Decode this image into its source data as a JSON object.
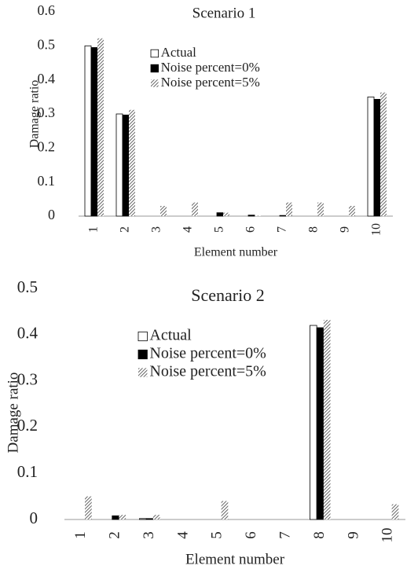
{
  "chart_data": [
    {
      "type": "bar",
      "title": "Scenario 1",
      "y_label": "Damage ratio",
      "x_label": "Element number",
      "categories": [
        "1",
        "2",
        "3",
        "4",
        "5",
        "6",
        "7",
        "8",
        "9",
        "10"
      ],
      "series": [
        {
          "name": "Actual",
          "color": "#ffffff",
          "values": [
            0.5,
            0.3,
            0,
            0,
            0,
            0,
            0,
            0,
            0,
            0.35
          ]
        },
        {
          "name": "Noise percent=0%",
          "color": "#000000",
          "values": [
            0.495,
            0.297,
            0,
            0,
            0.01,
            0.003,
            0.002,
            0,
            0,
            0.343
          ]
        },
        {
          "name": "Noise percent=5%",
          "color": "#555555",
          "hatch": true,
          "values": [
            0.522,
            0.312,
            0.03,
            0.04,
            0.01,
            0.001,
            0.04,
            0.04,
            0.03,
            0.363
          ]
        }
      ],
      "ylim": [
        0,
        0.6
      ],
      "yticks": [
        0,
        0.1,
        0.2,
        0.3,
        0.4,
        0.5,
        0.6
      ]
    },
    {
      "type": "bar",
      "title": "Scenario 2",
      "y_label": "Damage ratio",
      "x_label": "Element number",
      "categories": [
        "1",
        "2",
        "3",
        "4",
        "5",
        "6",
        "7",
        "8",
        "9",
        "10"
      ],
      "series": [
        {
          "name": "Actual",
          "color": "#ffffff",
          "values": [
            0,
            0,
            0.002,
            0,
            0,
            0,
            0,
            0.42,
            0,
            0
          ]
        },
        {
          "name": "Noise percent=0%",
          "color": "#000000",
          "values": [
            0,
            0.008,
            0.002,
            0,
            0,
            0,
            0,
            0.415,
            0,
            0
          ]
        },
        {
          "name": "Noise percent=5%",
          "color": "#555555",
          "hatch": true,
          "values": [
            0.05,
            0.01,
            0.01,
            0,
            0.04,
            0,
            0,
            0.432,
            0,
            0.033
          ]
        }
      ],
      "ylim": [
        0,
        0.5
      ],
      "yticks": [
        0,
        0.1,
        0.2,
        0.3,
        0.4,
        0.5
      ]
    }
  ]
}
